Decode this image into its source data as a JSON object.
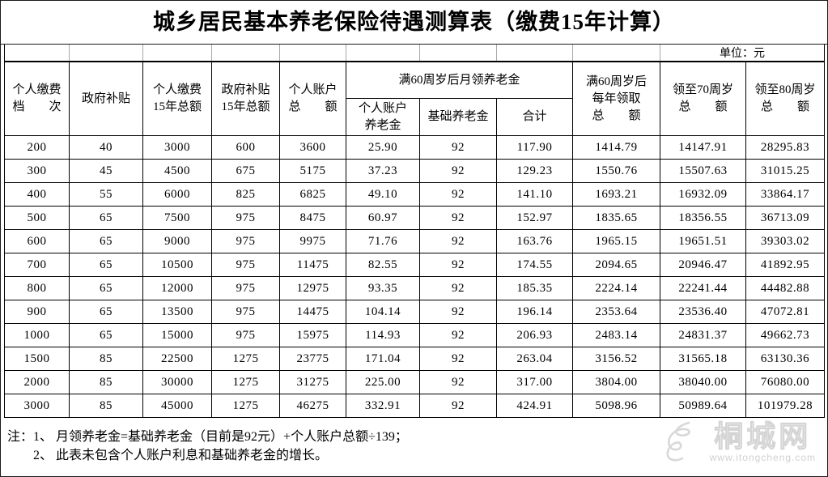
{
  "title": "城乡居民基本养老保险待遇测算表（缴费15年计算）",
  "unit_label": "单位：元",
  "table": {
    "header": {
      "personal_tier": "个人缴费\n档　　次",
      "gov_subsidy": "政府补贴",
      "personal_total_15y": "个人缴费\n15年总额",
      "subsidy_total_15y": "政府补贴\n15年总额",
      "account_total": "个人账户\n总　　额",
      "monthly_group": "满60周岁后月领养老金",
      "monthly_account": "个人账户\n养老金",
      "monthly_base": "基础养老金",
      "monthly_sum": "合计",
      "yearly_total": "满60周岁后\n每年领取\n总　　额",
      "to_70_total": "领至70周岁\n总　　额",
      "to_80_total": "领至80周岁\n总　　额"
    },
    "rows": [
      [
        "200",
        "40",
        "3000",
        "600",
        "3600",
        "25.90",
        "92",
        "117.90",
        "1414.79",
        "14147.91",
        "28295.83"
      ],
      [
        "300",
        "45",
        "4500",
        "675",
        "5175",
        "37.23",
        "92",
        "129.23",
        "1550.76",
        "15507.63",
        "31015.25"
      ],
      [
        "400",
        "55",
        "6000",
        "825",
        "6825",
        "49.10",
        "92",
        "141.10",
        "1693.21",
        "16932.09",
        "33864.17"
      ],
      [
        "500",
        "65",
        "7500",
        "975",
        "8475",
        "60.97",
        "92",
        "152.97",
        "1835.65",
        "18356.55",
        "36713.09"
      ],
      [
        "600",
        "65",
        "9000",
        "975",
        "9975",
        "71.76",
        "92",
        "163.76",
        "1965.15",
        "19651.51",
        "39303.02"
      ],
      [
        "700",
        "65",
        "10500",
        "975",
        "11475",
        "82.55",
        "92",
        "174.55",
        "2094.65",
        "20946.47",
        "41892.95"
      ],
      [
        "800",
        "65",
        "12000",
        "975",
        "12975",
        "93.35",
        "92",
        "185.35",
        "2224.14",
        "22241.44",
        "44482.88"
      ],
      [
        "900",
        "65",
        "13500",
        "975",
        "14475",
        "104.14",
        "92",
        "196.14",
        "2353.64",
        "23536.40",
        "47072.81"
      ],
      [
        "1000",
        "65",
        "15000",
        "975",
        "15975",
        "114.93",
        "92",
        "206.93",
        "2483.14",
        "24831.37",
        "49662.73"
      ],
      [
        "1500",
        "85",
        "22500",
        "1275",
        "23775",
        "171.04",
        "92",
        "263.04",
        "3156.52",
        "31565.18",
        "63130.36"
      ],
      [
        "2000",
        "85",
        "30000",
        "1275",
        "31275",
        "225.00",
        "92",
        "317.00",
        "3804.00",
        "38040.00",
        "76080.00"
      ],
      [
        "3000",
        "85",
        "45000",
        "1275",
        "46275",
        "332.91",
        "92",
        "424.91",
        "5098.96",
        "50989.64",
        "101979.28"
      ]
    ]
  },
  "notes": {
    "label": "注：",
    "items": [
      "1、 月领养老金=基础养老金（目前是92元）+个人账户总额÷139；",
      "2、 此表未包含个人账户利息和基础养老金的增长。"
    ]
  },
  "watermark": {
    "site_name": "桐城网",
    "url": "www.itongcheng.com"
  }
}
